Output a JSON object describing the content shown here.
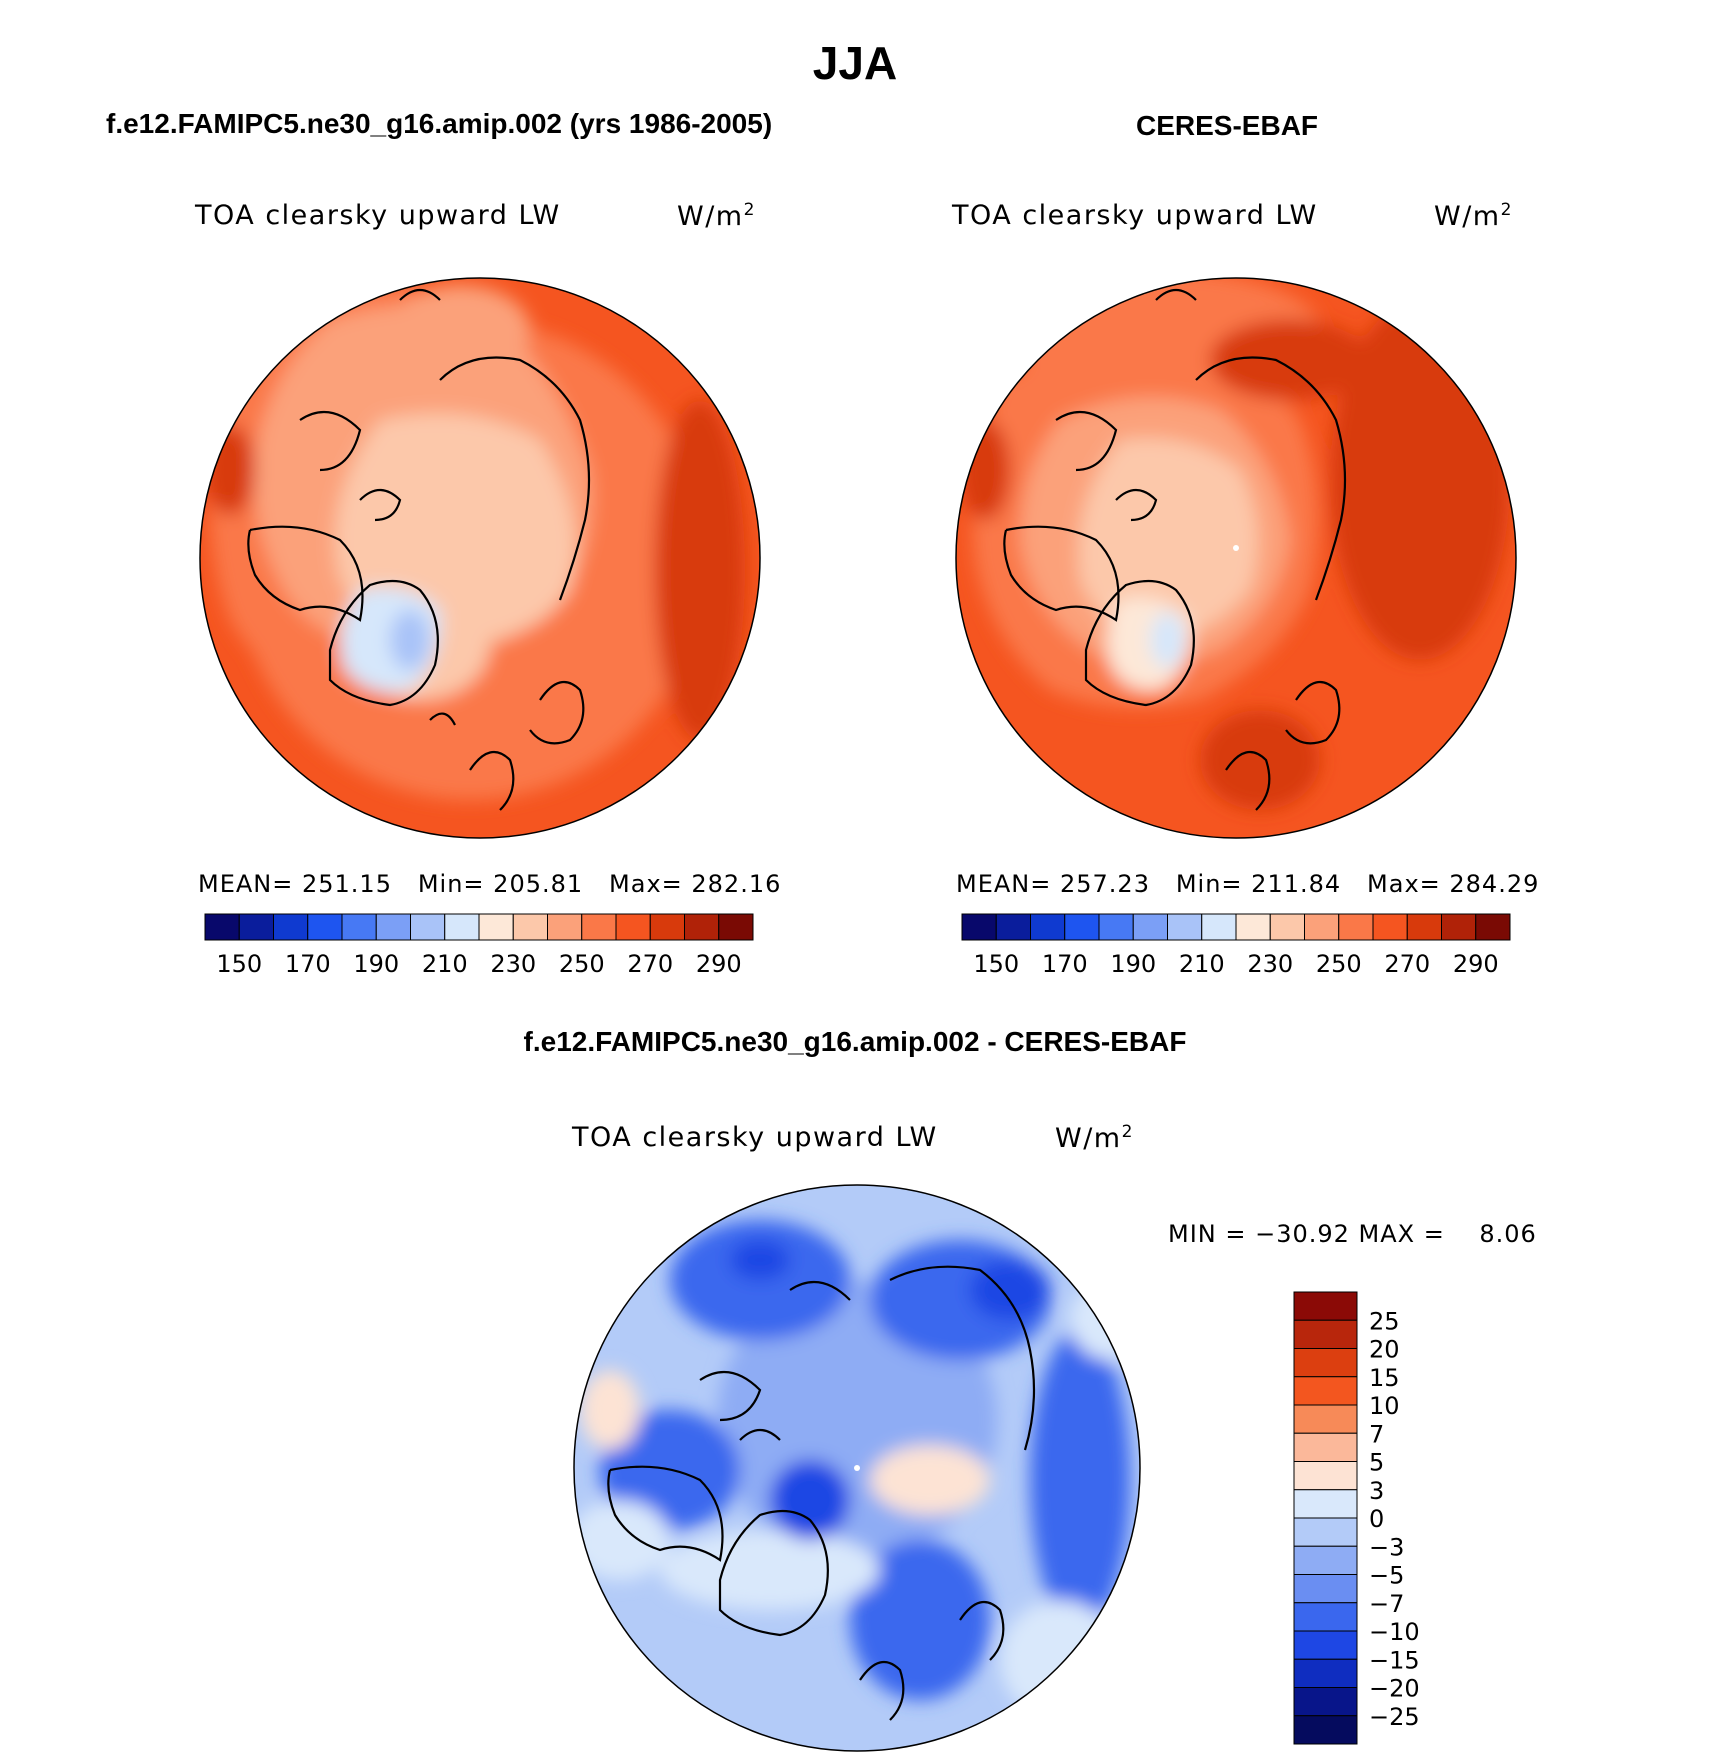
{
  "page": {
    "title": "JJA",
    "diff_title": "f.e12.FAMIPC5.ne30_g16.amip.002 - CERES-EBAF"
  },
  "panels": [
    {
      "case_title": "f.e12.FAMIPC5.ne30_g16.amip.002 (yrs 1986-2005)",
      "variable": "TOA clearsky upward LW",
      "units_base": "W/m",
      "units_exp": "2",
      "stats_text": "MEAN= 251.15   Min= 205.81   Max= 282.16",
      "mean": 251.15,
      "min": 205.81,
      "max": 282.16
    },
    {
      "case_title": "CERES-EBAF",
      "variable": "TOA clearsky upward LW",
      "units_base": "W/m",
      "units_exp": "2",
      "stats_text": "MEAN= 257.23   Min= 211.84   Max= 284.29",
      "mean": 257.23,
      "min": 211.84,
      "max": 284.29
    }
  ],
  "diff_panel": {
    "variable": "TOA clearsky upward LW",
    "units_base": "W/m",
    "units_exp": "2",
    "stats_text": "MIN = −30.92 MAX =    8.06",
    "min": -30.92,
    "max": 8.06
  },
  "chart_data": [
    {
      "type": "heatmap",
      "name": "",
      "colorbar_ticks": [
        "150",
        "170",
        "190",
        "210",
        "230",
        "250",
        "270",
        "290"
      ],
      "colors": [
        "#08086b",
        "#0a1d9c",
        "#0f3ad0",
        "#1e55f0",
        "#4779f4",
        "#7b9ff6",
        "#a9c3f8",
        "#d6e7fb",
        "#fde8d8",
        "#fcc8aa",
        "#fba17a",
        "#fa7848",
        "#f55520",
        "#d83a0c",
        "#b02208",
        "#7a0a04"
      ]
    },
    {
      "type": "heatmap",
      "name": "",
      "colorbar_ticks": [
        "150",
        "170",
        "190",
        "210",
        "230",
        "250",
        "270",
        "290"
      ],
      "colors": [
        "#08086b",
        "#0a1d9c",
        "#0f3ad0",
        "#1e55f0",
        "#4779f4",
        "#7b9ff6",
        "#a9c3f8",
        "#d6e7fb",
        "#fde8d8",
        "#fcc8aa",
        "#fba17a",
        "#fa7848",
        "#f55520",
        "#d83a0c",
        "#b02208",
        "#7a0a04"
      ]
    },
    {
      "type": "heatmap",
      "name": "",
      "colorbar_ticks": [
        "25",
        "20",
        "15",
        "10",
        "7",
        "5",
        "3",
        "0",
        "−3",
        "−5",
        "−7",
        "−10",
        "−15",
        "−20",
        "−25"
      ],
      "colors": [
        "#8b0a06",
        "#b8260c",
        "#dc3f10",
        "#f3561f",
        "#f78a58",
        "#fbb89a",
        "#fde3d4",
        "#d9e8fb",
        "#b3cbf8",
        "#8eacf4",
        "#6a8ef2",
        "#3a67ee",
        "#1e47e4",
        "#0f2dc0",
        "#08158a",
        "#050b5e"
      ]
    }
  ]
}
